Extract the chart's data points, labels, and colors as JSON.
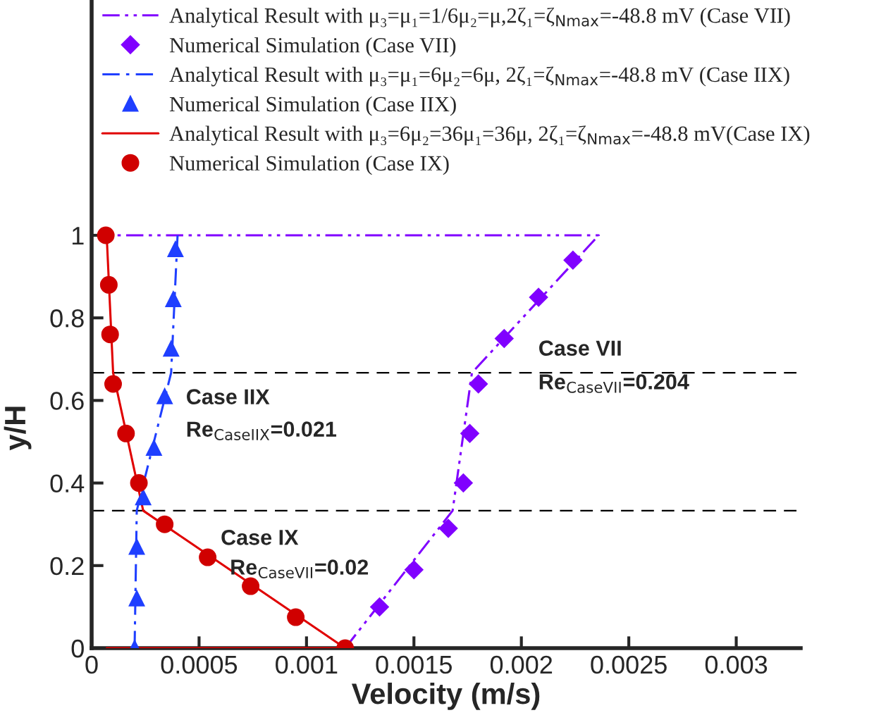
{
  "chart_data": {
    "type": "line",
    "xlabel": "Velocity (m/s)",
    "ylabel": "y/H",
    "xlim": [
      0,
      0.0033
    ],
    "ylim": [
      0,
      1.57
    ],
    "xticks": [
      0,
      0.0005,
      0.001,
      0.0015,
      0.002,
      0.0025,
      0.003
    ],
    "yticks": [
      0,
      0.2,
      0.4,
      0.6,
      0.8,
      1
    ],
    "legend": "top",
    "grid": false,
    "series": [
      {
        "name": "Analytical Result with μ₃=μ₁=1/6μ₂=μ,2ζ₁=ζ$_{Nmax}$=-48.8 mV (Case VII)",
        "color": "#8000ff",
        "line_style": "dashdotdot",
        "marker": "none",
        "x": [
          0.00118,
          0.00168,
          0.00177,
          0.00236,
          7e-05
        ],
        "values": [
          0,
          0.333,
          0.667,
          1,
          1
        ]
      },
      {
        "name": "Numerical Simulation (Case VII)",
        "type": "scatter",
        "color": "#8000ff",
        "marker": "diamond",
        "x": [
          0.00134,
          0.0015,
          0.00166,
          0.00173,
          0.00176,
          0.0018,
          0.00192,
          0.00208,
          0.00224
        ],
        "values": [
          0.1,
          0.19,
          0.29,
          0.4,
          0.52,
          0.64,
          0.75,
          0.85,
          0.94
        ]
      },
      {
        "name": "Analytical Result with μ₃=μ₁=6μ₂=6μ, 2ζ₁=ζ$_{Nmax}$=-48.8 mV (Case IIX)",
        "color": "#1f3fff",
        "line_style": "dashdot",
        "marker": "none",
        "x": [
          0.0002,
          0.00021,
          0.00037,
          0.0004
        ],
        "values": [
          0,
          0.333,
          0.667,
          1
        ]
      },
      {
        "name": "Numerical Simulation (Case IIX)",
        "type": "scatter",
        "color": "#1f3fff",
        "marker": "triangle",
        "x": [
          0.0002,
          0.00021,
          0.00021,
          0.00024,
          0.00029,
          0.00034,
          0.00037,
          0.00038,
          0.00039
        ],
        "values": [
          0,
          0.12,
          0.245,
          0.365,
          0.485,
          0.61,
          0.725,
          0.845,
          0.966
        ]
      },
      {
        "name": "Analytical Result with μ₃=6μ₂=36μ₁=36μ, 2ζ₁=ζ$_{Nmax}$=-48.8 mV(Case IX)",
        "color": "#e00000",
        "line_style": "solid",
        "marker": "none",
        "x": [
          7e-05,
          0.00118,
          0.00024,
          0.0001,
          7e-05
        ],
        "values": [
          0,
          0,
          0.333,
          0.667,
          1
        ]
      },
      {
        "name": "Numerical Simulation (Case IX)",
        "type": "scatter",
        "color": "#d00000",
        "marker": "circle",
        "x": [
          6.6e-05,
          8e-05,
          8.6e-05,
          0.0001,
          0.00016,
          0.00022,
          0.00034,
          0.00054,
          0.00074,
          0.00095,
          0.00118
        ],
        "values": [
          1,
          0.88,
          0.76,
          0.64,
          0.52,
          0.4,
          0.3,
          0.22,
          0.15,
          0.075,
          0
        ]
      }
    ],
    "ref_lines": [
      {
        "axis": "y",
        "value": 0.333,
        "color": "#000000",
        "line_style": "dashed"
      },
      {
        "axis": "y",
        "value": 0.667,
        "color": "#000000",
        "line_style": "dashed"
      }
    ],
    "annotations": [
      "Case IIX",
      "Re$_{CaseIIX}$=0.021",
      "Case IX",
      "Re$_{CaseVII}$=0.02",
      "Case VII",
      "Re$_{CaseVII}$=0.204"
    ]
  }
}
